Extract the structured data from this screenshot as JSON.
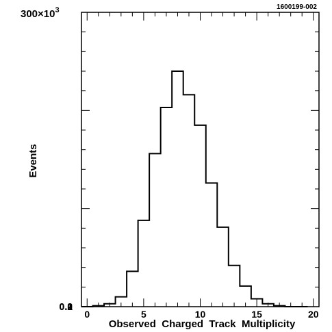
{
  "chart_data": {
    "type": "bar",
    "style": "histogram-step",
    "figure_id": "1600199-002",
    "title": "",
    "xlabel": "Observed  Charged  Track  Multiplicity",
    "ylabel": "Events",
    "y_multiplier_label": "300×10",
    "y_multiplier_exponent": "3",
    "x_range": [
      -0.5,
      20.5
    ],
    "ylim": [
      0,
      300000
    ],
    "x_ticks": [
      0,
      5,
      10,
      15,
      20
    ],
    "y_ticks": [
      0,
      100,
      200
    ],
    "bin_width": 1,
    "x": [
      0,
      1,
      2,
      3,
      4,
      5,
      6,
      7,
      8,
      9,
      10,
      11,
      12,
      13,
      14,
      15,
      16,
      17,
      18,
      19
    ],
    "values": [
      0,
      1000,
      3000,
      10000,
      36000,
      88000,
      156000,
      203000,
      240000,
      216000,
      185000,
      126000,
      81000,
      42000,
      21000,
      8000,
      3000,
      1000,
      0,
      0
    ],
    "grid": false,
    "legend": "none"
  }
}
